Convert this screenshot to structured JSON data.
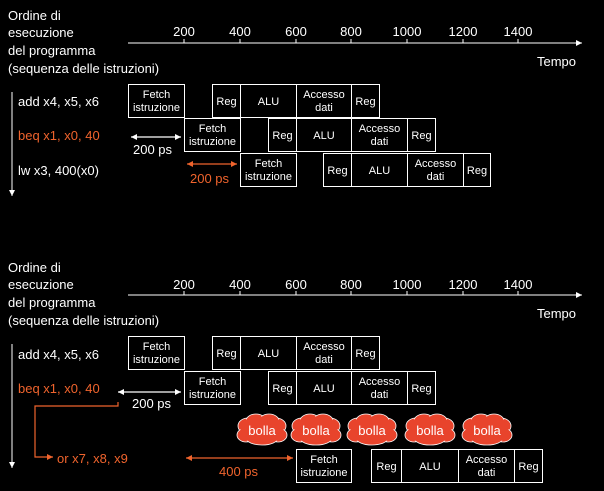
{
  "colors": {
    "background": "#000000",
    "foreground": "#ffffff",
    "highlight": "#f0642d",
    "bubble_fill": "#e8442c"
  },
  "panels": [
    {
      "order_label_lines": [
        "Ordine di",
        "esecuzione",
        "del programma",
        "(sequenza delle istruzioni)"
      ],
      "time_label": "Tempo",
      "tick_labels": [
        "200",
        "400",
        "600",
        "800",
        "1000",
        "1200",
        "1400"
      ],
      "instructions": [
        {
          "text": "add x4, x5, x6",
          "highlight": false
        },
        {
          "text": "beq x1, x0, 40",
          "highlight": true
        },
        {
          "text": "lw x3, 400(x0)",
          "highlight": false
        }
      ],
      "stages": [
        [
          "Fetch\nistruzione",
          "Reg",
          "ALU",
          "Accesso\ndati",
          "Reg"
        ],
        [
          "Fetch\nistruzione",
          "Reg",
          "ALU",
          "Accesso\ndati",
          "Reg"
        ],
        [
          "Fetch\nistruzione",
          "Reg",
          "ALU",
          "Accesso\ndati",
          "Reg"
        ]
      ],
      "delays": [
        {
          "text": "200 ps",
          "highlight": false
        },
        {
          "text": "200 ps",
          "highlight": true
        }
      ],
      "bubbles": []
    },
    {
      "order_label_lines": [
        "Ordine di",
        "esecuzione",
        "del programma",
        "(sequenza delle istruzioni)"
      ],
      "time_label": "Tempo",
      "tick_labels": [
        "200",
        "400",
        "600",
        "800",
        "1000",
        "1200",
        "1400"
      ],
      "instructions": [
        {
          "text": "add x4, x5, x6",
          "highlight": false
        },
        {
          "text": "beq x1, x0, 40",
          "highlight": true
        },
        {
          "text": "or x7, x8, x9",
          "highlight": true
        }
      ],
      "stages": [
        [
          "Fetch\nistruzione",
          "Reg",
          "ALU",
          "Accesso\ndati",
          "Reg"
        ],
        [
          "Fetch\nistruzione",
          "Reg",
          "ALU",
          "Accesso\ndati",
          "Reg"
        ],
        [
          "Fetch\nistruzione",
          "Reg",
          "ALU",
          "Accesso\ndati",
          "Reg"
        ]
      ],
      "delays": [
        {
          "text": "200 ps",
          "highlight": false
        },
        {
          "text": "400 ps",
          "highlight": true
        }
      ],
      "bubbles": [
        "bolla",
        "bolla",
        "bolla",
        "bolla",
        "bolla"
      ]
    }
  ]
}
